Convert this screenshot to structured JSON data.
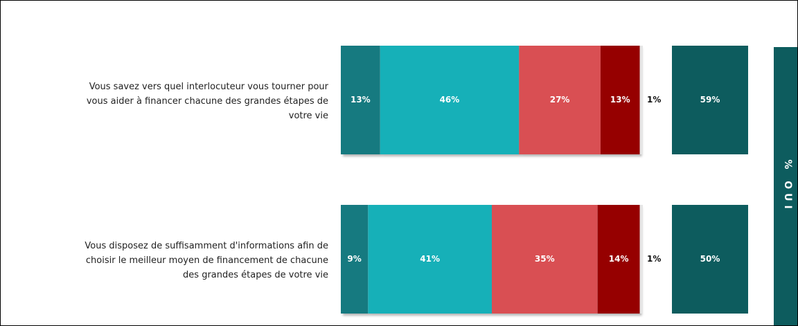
{
  "chart_data": {
    "type": "bar",
    "categories": [
      "Vous savez vers quel interlocuteur vous tourner pour\nvous aider à financer chacune des grandes étapes de\nvotre vie",
      "Vous disposez de suffisamment d'informations afin de\nchoisir le meilleur moyen de financement de chacune\ndes grandes étapes de votre vie"
    ],
    "series": [
      {
        "color": "#137a80",
        "values": [
          13,
          9
        ],
        "value_labels": [
          "13%",
          "9%"
        ]
      },
      {
        "color": "#14b0b8",
        "values": [
          46,
          41
        ],
        "value_labels": [
          "46%",
          "41%"
        ]
      },
      {
        "color": "#d94f53",
        "values": [
          27,
          35
        ],
        "value_labels": [
          "27%",
          "35%"
        ]
      },
      {
        "color": "#960000",
        "values": [
          13,
          14
        ],
        "value_labels": [
          "13%",
          "14%"
        ]
      },
      {
        "color": "#e6e6e6",
        "values": [
          1,
          1
        ],
        "value_labels": [
          "1%",
          "1%"
        ]
      }
    ],
    "oui": {
      "label": "% OUI",
      "color": "#0d5c5e",
      "values": [
        59,
        50
      ],
      "value_labels": [
        "59%",
        "50%"
      ]
    }
  }
}
